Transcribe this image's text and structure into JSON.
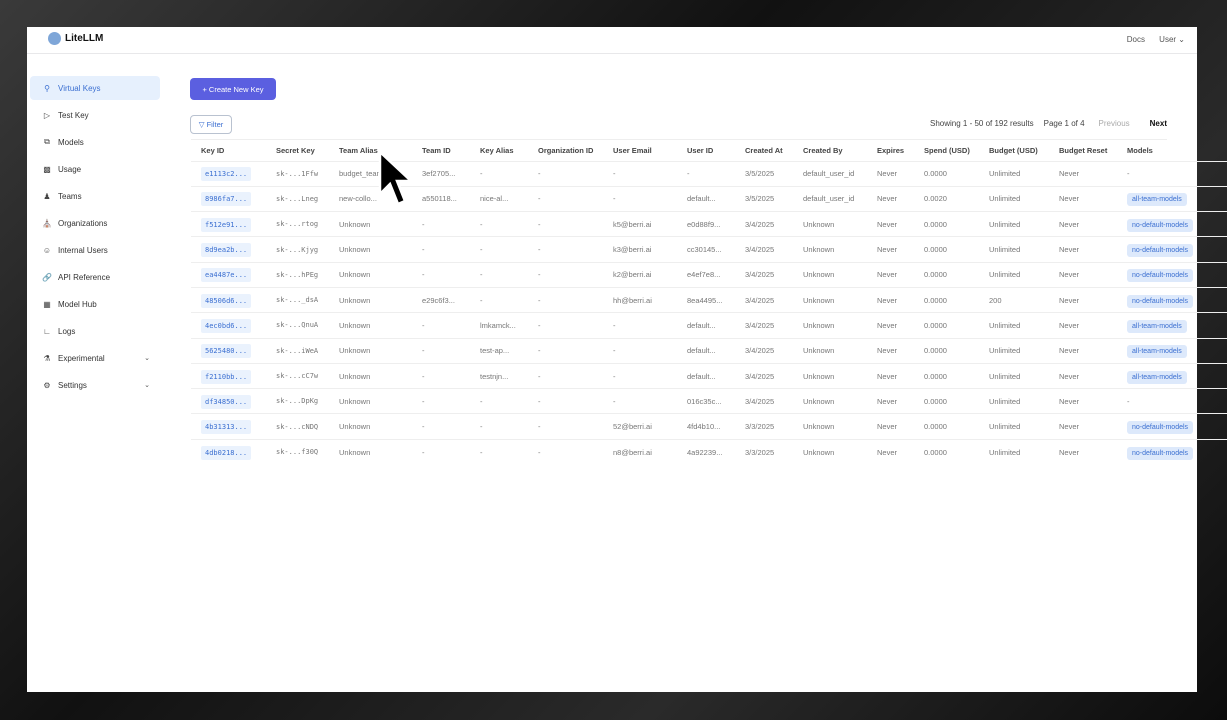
{
  "app": {
    "title": "LiteLLM",
    "docs": "Docs",
    "user": "User"
  },
  "sidebar": {
    "items": [
      {
        "label": "Virtual Keys",
        "icon": "key-search-icon",
        "active": true
      },
      {
        "label": "Test Key",
        "icon": "play-circle-icon"
      },
      {
        "label": "Models",
        "icon": "block-icon"
      },
      {
        "label": "Usage",
        "icon": "bar-chart-icon"
      },
      {
        "label": "Teams",
        "icon": "team-icon"
      },
      {
        "label": "Organizations",
        "icon": "bank-icon"
      },
      {
        "label": "Internal Users",
        "icon": "user-icon"
      },
      {
        "label": "API Reference",
        "icon": "api-icon"
      },
      {
        "label": "Model Hub",
        "icon": "appstore-icon"
      },
      {
        "label": "Logs",
        "icon": "line-chart-icon"
      },
      {
        "label": "Experimental",
        "icon": "experiment-icon",
        "expandable": true
      },
      {
        "label": "Settings",
        "icon": "settings-icon",
        "expandable": true
      }
    ]
  },
  "toolbar": {
    "create_label": "+ Create New Key",
    "filter_label": "Filter"
  },
  "pagination": {
    "showing": "Showing 1 - 50 of 192 results",
    "page": "Page 1 of 4",
    "previous": "Previous",
    "next": "Next"
  },
  "table": {
    "headers": [
      "Key ID",
      "Secret Key",
      "Team Alias",
      "Team ID",
      "Key Alias",
      "Organization ID",
      "User Email",
      "User ID",
      "Created At",
      "Created By",
      "Expires",
      "Spend (USD)",
      "Budget (USD)",
      "Budget Reset",
      "Models"
    ],
    "rows": [
      [
        "e1113c2...",
        "sk-...1Ffw",
        "budget_team",
        "3ef2705...",
        "-",
        "-",
        "-",
        "-",
        "3/5/2025",
        "default_user_id",
        "Never",
        "0.0000",
        "Unlimited",
        "Never",
        "-"
      ],
      [
        "8986fa7...",
        "sk-...Lneg",
        "new-collo...",
        "a550118...",
        "nice-al...",
        "-",
        "-",
        "default...",
        "3/5/2025",
        "default_user_id",
        "Never",
        "0.0020",
        "Unlimited",
        "Never",
        "all-team-models"
      ],
      [
        "f512e91...",
        "sk-...rtog",
        "Unknown",
        "-",
        "-",
        "-",
        "k5@berri.ai",
        "e0d88f9...",
        "3/4/2025",
        "Unknown",
        "Never",
        "0.0000",
        "Unlimited",
        "Never",
        "no-default-models"
      ],
      [
        "8d9ea2b...",
        "sk-...Kjyg",
        "Unknown",
        "-",
        "-",
        "-",
        "k3@berri.ai",
        "cc30145...",
        "3/4/2025",
        "Unknown",
        "Never",
        "0.0000",
        "Unlimited",
        "Never",
        "no-default-models"
      ],
      [
        "ea4487e...",
        "sk-...hPEg",
        "Unknown",
        "-",
        "-",
        "-",
        "k2@berri.ai",
        "e4ef7e8...",
        "3/4/2025",
        "Unknown",
        "Never",
        "0.0000",
        "Unlimited",
        "Never",
        "no-default-models"
      ],
      [
        "48506d6...",
        "sk-..._dsA",
        "Unknown",
        "e29c6f3...",
        "-",
        "-",
        "hh@berri.ai",
        "8ea4495...",
        "3/4/2025",
        "Unknown",
        "Never",
        "0.0000",
        "200",
        "Never",
        "no-default-models"
      ],
      [
        "4ec0bd6...",
        "sk-...QnuA",
        "Unknown",
        "-",
        "lmkamck...",
        "-",
        "-",
        "default...",
        "3/4/2025",
        "Unknown",
        "Never",
        "0.0000",
        "Unlimited",
        "Never",
        "all-team-models"
      ],
      [
        "5625480...",
        "sk-...iWeA",
        "Unknown",
        "-",
        "test-ap...",
        "-",
        "-",
        "default...",
        "3/4/2025",
        "Unknown",
        "Never",
        "0.0000",
        "Unlimited",
        "Never",
        "all-team-models"
      ],
      [
        "f2110bb...",
        "sk-...cC7w",
        "Unknown",
        "-",
        "testnjn...",
        "-",
        "-",
        "default...",
        "3/4/2025",
        "Unknown",
        "Never",
        "0.0000",
        "Unlimited",
        "Never",
        "all-team-models"
      ],
      [
        "df34850...",
        "sk-...DpKg",
        "Unknown",
        "-",
        "-",
        "-",
        "-",
        "016c35c...",
        "3/4/2025",
        "Unknown",
        "Never",
        "0.0000",
        "Unlimited",
        "Never",
        "-"
      ],
      [
        "4b31313...",
        "sk-...cNDQ",
        "Unknown",
        "-",
        "-",
        "-",
        "52@berri.ai",
        "4fd4b10...",
        "3/3/2025",
        "Unknown",
        "Never",
        "0.0000",
        "Unlimited",
        "Never",
        "no-default-models"
      ],
      [
        "4db0218...",
        "sk-...f30Q",
        "Unknown",
        "-",
        "-",
        "-",
        "n8@berri.ai",
        "4a92239...",
        "3/3/2025",
        "Unknown",
        "Never",
        "0.0000",
        "Unlimited",
        "Never",
        "no-default-models"
      ]
    ]
  },
  "colors": {
    "accent": "#5b5fe0",
    "link": "#3b6fd1",
    "active_bg": "#e6f0fd"
  }
}
